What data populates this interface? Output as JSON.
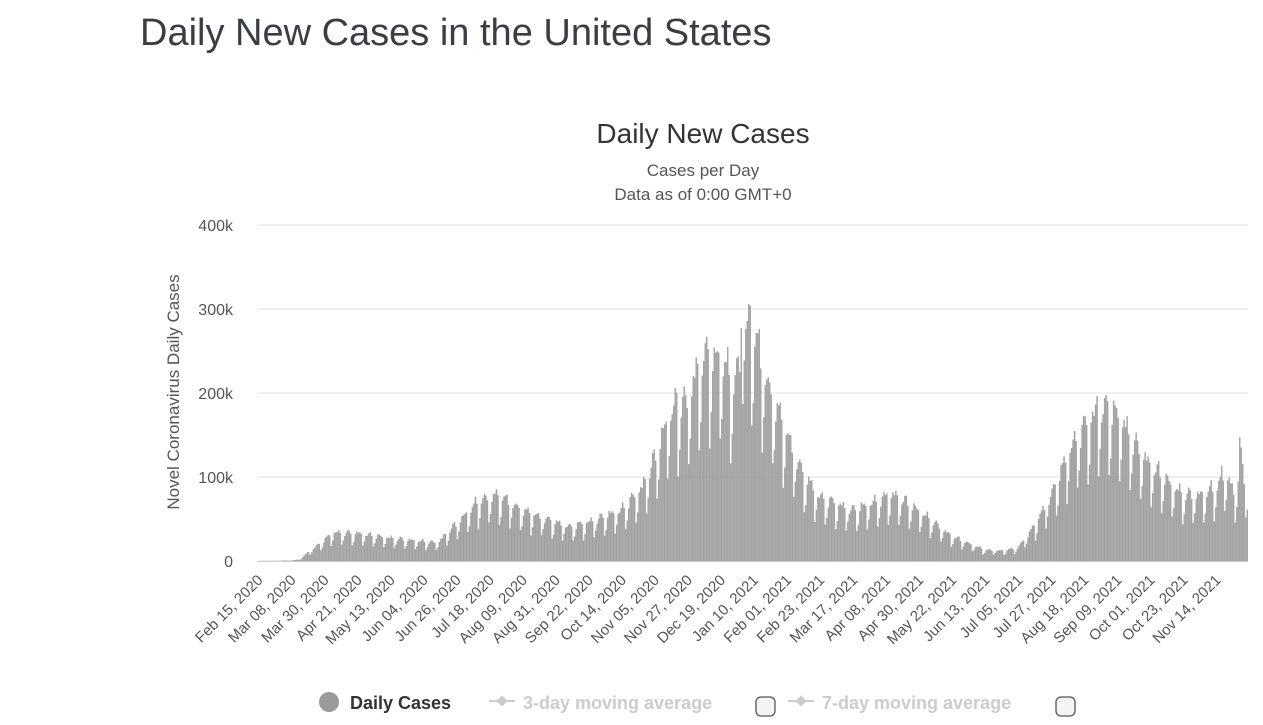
{
  "page": {
    "title": "Daily New Cases in the United States"
  },
  "colors": {
    "bar": "#a3a3a3",
    "bar_stroke": "#8f8f8f",
    "grid": "#e6e6e6",
    "axis": "#cccccc",
    "legend_active": "#333333",
    "legend_inactive": "#cccccc"
  },
  "legend": {
    "items": [
      {
        "label": "Daily Cases",
        "active": true,
        "marker": "circle",
        "checkbox": false
      },
      {
        "label": "3-day moving average",
        "active": false,
        "marker": "line-diamond",
        "checkbox": true
      },
      {
        "label": "7-day moving average",
        "active": false,
        "marker": "line-diamond",
        "checkbox": true
      }
    ]
  },
  "chart_data": {
    "type": "bar",
    "title": "Daily New Cases",
    "subtitle": [
      "Cases per Day",
      "Data as of 0:00 GMT+0"
    ],
    "xlabel": "",
    "ylabel": "Novel Coronavirus Daily Cases",
    "ylim": [
      0,
      400000
    ],
    "y_ticks": [
      0,
      100000,
      200000,
      300000,
      400000
    ],
    "y_tick_labels": [
      "0",
      "100k",
      "200k",
      "300k",
      "400k"
    ],
    "x_tick_labels": [
      "Feb 15, 2020",
      "Mar 08, 2020",
      "Mar 30, 2020",
      "Apr 21, 2020",
      "May 13, 2020",
      "Jun 04, 2020",
      "Jun 26, 2020",
      "Jul 18, 2020",
      "Aug 09, 2020",
      "Aug 31, 2020",
      "Sep 22, 2020",
      "Oct 14, 2020",
      "Nov 05, 2020",
      "Nov 27, 2020",
      "Dec 19, 2020",
      "Jan 10, 2021",
      "Feb 01, 2021",
      "Feb 23, 2021",
      "Mar 17, 2021",
      "Apr 08, 2021",
      "Apr 30, 2021",
      "May 22, 2021",
      "Jun 13, 2021",
      "Jul 05, 2021",
      "Jul 27, 2021",
      "Aug 18, 2021",
      "Sep 09, 2021",
      "Oct 01, 2021",
      "Oct 23, 2021",
      "Nov 14, 2021"
    ],
    "grid": true,
    "legend_position": "bottom-center",
    "series": [
      {
        "name": "Daily Cases",
        "start_date": "Feb 15, 2020",
        "interval_days": 1,
        "anchors": [
          [
            "Feb 15, 2020",
            0
          ],
          [
            "Mar 08, 2020",
            200
          ],
          [
            "Mar 14, 2020",
            1500
          ],
          [
            "Mar 20, 2020",
            10000
          ],
          [
            "Mar 30, 2020",
            22000
          ],
          [
            "Apr 05, 2020",
            31000
          ],
          [
            "Apr 21, 2020",
            30000
          ],
          [
            "May 13, 2020",
            25000
          ],
          [
            "Jun 04, 2020",
            21000
          ],
          [
            "Jun 14, 2020",
            20000
          ],
          [
            "Jun 26, 2020",
            40000
          ],
          [
            "Jul 10, 2020",
            63000
          ],
          [
            "Jul 18, 2020",
            70000
          ],
          [
            "Jul 24, 2020",
            72000
          ],
          [
            "Aug 09, 2020",
            55000
          ],
          [
            "Aug 31, 2020",
            42000
          ],
          [
            "Sep 10, 2020",
            37000
          ],
          [
            "Sep 22, 2020",
            42000
          ],
          [
            "Oct 14, 2020",
            55000
          ],
          [
            "Oct 28, 2020",
            80000
          ],
          [
            "Nov 05, 2020",
            110000
          ],
          [
            "Nov 15, 2020",
            160000
          ],
          [
            "Nov 27, 2020",
            175000
          ],
          [
            "Dec 05, 2020",
            215000
          ],
          [
            "Dec 19, 2020",
            225000
          ],
          [
            "Dec 28, 2020",
            190000
          ],
          [
            "Jan 08, 2021",
            268000
          ],
          [
            "Jan 12, 2021",
            240000
          ],
          [
            "Jan 20, 2021",
            190000
          ],
          [
            "Feb 01, 2021",
            140000
          ],
          [
            "Feb 12, 2021",
            95000
          ],
          [
            "Feb 23, 2021",
            70000
          ],
          [
            "Mar 17, 2021",
            55000
          ],
          [
            "Apr 08, 2021",
            68000
          ],
          [
            "Apr 14, 2021",
            72000
          ],
          [
            "Apr 30, 2021",
            55000
          ],
          [
            "May 22, 2021",
            27000
          ],
          [
            "Jun 13, 2021",
            12000
          ],
          [
            "Jun 25, 2021",
            11000
          ],
          [
            "Jul 05, 2021",
            14000
          ],
          [
            "Jul 15, 2021",
            35000
          ],
          [
            "Jul 27, 2021",
            70000
          ],
          [
            "Aug 10, 2021",
            125000
          ],
          [
            "Aug 18, 2021",
            145000
          ],
          [
            "Aug 30, 2021",
            165000
          ],
          [
            "Sep 09, 2021",
            160000
          ],
          [
            "Sep 20, 2021",
            130000
          ],
          [
            "Oct 01, 2021",
            105000
          ],
          [
            "Oct 23, 2021",
            72000
          ],
          [
            "Nov 05, 2021",
            72000
          ],
          [
            "Nov 14, 2021",
            80000
          ],
          [
            "Nov 22, 2021",
            95000
          ],
          [
            "Nov 26, 2021",
            70000
          ],
          [
            "Dec 01, 2021",
            105000
          ],
          [
            "Dec 05, 2021",
            75000
          ]
        ],
        "spikes": [
          [
            "Jan 08, 2021",
            304000
          ],
          [
            "Jan 02, 2021",
            277000
          ],
          [
            "Dec 11, 2020",
            252000
          ],
          [
            "Dec 16, 2020",
            248000
          ],
          [
            "Dec 04, 2020",
            235000
          ],
          [
            "Nov 20, 2020",
            200000
          ],
          [
            "Aug 27, 2021",
            196000
          ],
          [
            "Sep 03, 2021",
            190000
          ],
          [
            "Sep 14, 2021",
            168000
          ],
          [
            "Jul 24, 2020",
            78000
          ],
          [
            "Apr 09, 2021",
            80000
          ],
          [
            "Nov 18, 2021",
            113000
          ],
          [
            "Nov 30, 2021",
            147000
          ],
          [
            "Dec 01, 2021",
            135000
          ]
        ],
        "weekly_pattern": [
          0.62,
          0.78,
          1.02,
          1.12,
          1.15,
          1.18,
          1.08
        ]
      }
    ]
  }
}
